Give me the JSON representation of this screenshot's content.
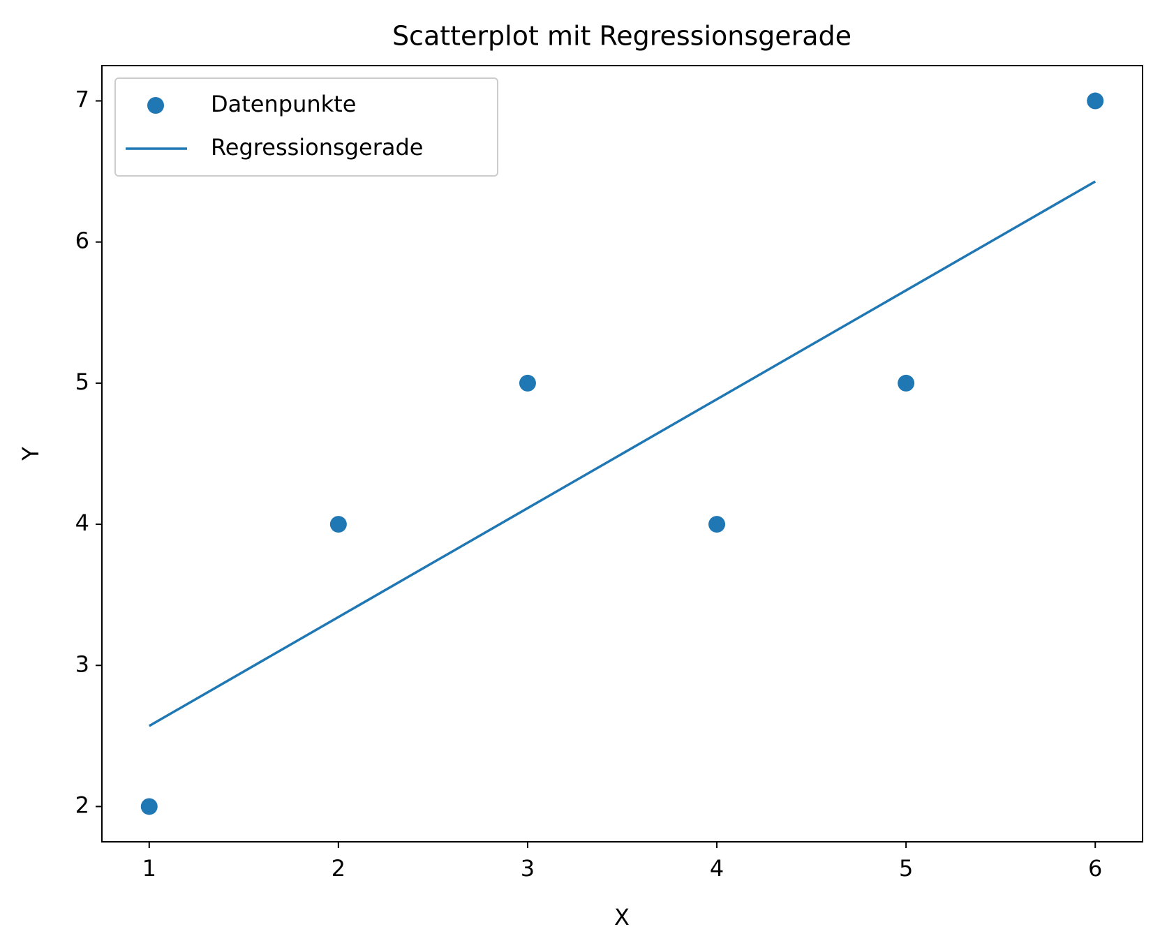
{
  "chart_data": {
    "type": "scatter",
    "title": "Scatterplot mit Regressionsgerade",
    "x_label": "X",
    "y_label": "Y",
    "series": [
      {
        "name": "Datenpunkte",
        "type": "scatter",
        "color": "#1f77b4",
        "x": [
          1,
          2,
          3,
          4,
          5,
          6
        ],
        "values": [
          2,
          4,
          5,
          4,
          5,
          7
        ]
      },
      {
        "name": "Regressionsgerade",
        "type": "line",
        "color": "#1f77b4",
        "x": [
          1,
          6
        ],
        "values": [
          2.571,
          6.429
        ]
      }
    ],
    "xlim": [
      0.75,
      6.25
    ],
    "ylim": [
      1.75,
      7.25
    ],
    "xticks": [
      1,
      2,
      3,
      4,
      5,
      6
    ],
    "yticks": [
      2,
      3,
      4,
      5,
      6,
      7
    ],
    "grid": false,
    "legend": "upper left"
  }
}
